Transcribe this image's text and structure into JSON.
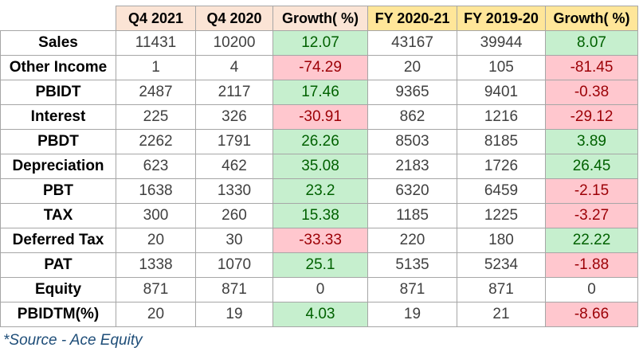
{
  "columns": [
    "Q4 2021",
    "Q4 2020",
    "Growth( %)",
    "FY 2020-21",
    "FY 2019-20",
    "Growth( %)"
  ],
  "rows": [
    {
      "label": "Sales",
      "values": [
        "11431",
        "10200",
        "12.07",
        "43167",
        "39944",
        "8.07"
      ]
    },
    {
      "label": "Other Income",
      "values": [
        "1",
        "4",
        "-74.29",
        "20",
        "105",
        "-81.45"
      ]
    },
    {
      "label": "PBIDT",
      "values": [
        "2487",
        "2117",
        "17.46",
        "9365",
        "9401",
        "-0.38"
      ]
    },
    {
      "label": "Interest",
      "values": [
        "225",
        "326",
        "-30.91",
        "862",
        "1216",
        "-29.12"
      ]
    },
    {
      "label": "PBDT",
      "values": [
        "2262",
        "1791",
        "26.26",
        "8503",
        "8185",
        "3.89"
      ]
    },
    {
      "label": "Depreciation",
      "values": [
        "623",
        "462",
        "35.08",
        "2183",
        "1726",
        "26.45"
      ]
    },
    {
      "label": "PBT",
      "values": [
        "1638",
        "1330",
        "23.2",
        "6320",
        "6459",
        "-2.15"
      ]
    },
    {
      "label": "TAX",
      "values": [
        "300",
        "260",
        "15.38",
        "1185",
        "1225",
        "-3.27"
      ]
    },
    {
      "label": "Deferred Tax",
      "values": [
        "20",
        "30",
        "-33.33",
        "220",
        "180",
        "22.22"
      ]
    },
    {
      "label": "PAT",
      "values": [
        "1338",
        "1070",
        "25.1",
        "5135",
        "5234",
        "-1.88"
      ]
    },
    {
      "label": "Equity",
      "values": [
        "871",
        "871",
        "0",
        "871",
        "871",
        "0"
      ]
    },
    {
      "label": "PBIDTM(%)",
      "values": [
        "20",
        "19",
        "4.03",
        "19",
        "21",
        "-8.66"
      ]
    }
  ],
  "colors": {
    "positive_fill": "#c6efce",
    "negative_fill": "#ffc7ce",
    "quarter_header_fill": "#fbe4d5",
    "fy_header_fill": "#ffe699"
  },
  "source_note": "*Source - Ace Equity"
}
